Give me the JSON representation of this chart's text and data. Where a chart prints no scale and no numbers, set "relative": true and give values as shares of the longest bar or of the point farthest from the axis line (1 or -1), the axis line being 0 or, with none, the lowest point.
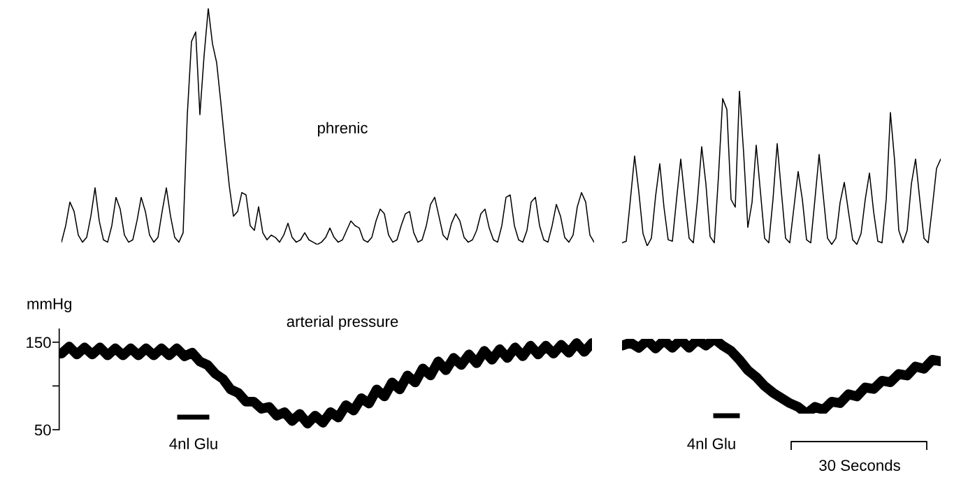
{
  "chart_data": [
    {
      "type": "line",
      "relative": true,
      "tick_labels": false,
      "annotations": [
        "phrenic"
      ],
      "categories": [
        null,
        null,
        null,
        null,
        null,
        null,
        null,
        null,
        null,
        null,
        null,
        null,
        null,
        null,
        null,
        null,
        null,
        null,
        null,
        null,
        null,
        null,
        null,
        null,
        null,
        null,
        null,
        null,
        null,
        null,
        null,
        null,
        null,
        null,
        null,
        null,
        null,
        null,
        null,
        null,
        null,
        null,
        null,
        null,
        null,
        null,
        null,
        null,
        null,
        null,
        null,
        null,
        null,
        null,
        null,
        null,
        null,
        null,
        null,
        null,
        null,
        null,
        null,
        null,
        null,
        null,
        null,
        null,
        null,
        null,
        null,
        null,
        null,
        null,
        null,
        null,
        null,
        null,
        null,
        null,
        null,
        null,
        null,
        null,
        null,
        null,
        null,
        null,
        null,
        null,
        null,
        null,
        null,
        null,
        null,
        null,
        null,
        null,
        null,
        null,
        null,
        null,
        null,
        null,
        null,
        null,
        null,
        null,
        null,
        null,
        null,
        null,
        null,
        null,
        null,
        null,
        null,
        null,
        null,
        null,
        null,
        null,
        null,
        null,
        null,
        null,
        null,
        null
      ],
      "series": [
        {
          "color": "#000000",
          "values": [
            0.01,
            0.08,
            0.18,
            0.14,
            0.04,
            0.01,
            0.03,
            0.12,
            0.24,
            0.1,
            0.02,
            0.01,
            0.08,
            0.2,
            0.15,
            0.04,
            0.01,
            0.02,
            0.1,
            0.2,
            0.14,
            0.04,
            0.01,
            0.03,
            0.14,
            0.24,
            0.12,
            0.03,
            0.01,
            0.05,
            0.55,
            0.86,
            0.9,
            0.55,
            0.8,
            1.0,
            0.85,
            0.77,
            0.6,
            0.42,
            0.25,
            0.12,
            0.14,
            0.22,
            0.21,
            0.08,
            0.06,
            0.16,
            0.05,
            0.02,
            0.04,
            0.03,
            0.01,
            0.04,
            0.09,
            0.03,
            0.01,
            0.02,
            0.05,
            0.02,
            0.01,
            0.0,
            0.01,
            0.03,
            0.07,
            0.03,
            0.01,
            0.02,
            0.06,
            0.1,
            0.08,
            0.07,
            0.02,
            0.01,
            0.03,
            0.1,
            0.15,
            0.13,
            0.04,
            0.01,
            0.02,
            0.08,
            0.13,
            0.14,
            0.05,
            0.01,
            0.02,
            0.08,
            0.17,
            0.2,
            0.12,
            0.04,
            0.02,
            0.09,
            0.13,
            0.1,
            0.03,
            0.01,
            0.02,
            0.06,
            0.13,
            0.15,
            0.07,
            0.02,
            0.01,
            0.08,
            0.2,
            0.21,
            0.08,
            0.02,
            0.01,
            0.06,
            0.18,
            0.2,
            0.08,
            0.02,
            0.01,
            0.08,
            0.17,
            0.12,
            0.03,
            0.01,
            0.04,
            0.16,
            0.22,
            0.18,
            0.04,
            0.01
          ]
        }
      ]
    },
    {
      "type": "line",
      "relative": true,
      "tick_labels": false,
      "categories": [
        null,
        null,
        null,
        null,
        null,
        null,
        null,
        null,
        null,
        null,
        null,
        null,
        null,
        null,
        null,
        null,
        null,
        null,
        null,
        null,
        null,
        null,
        null,
        null,
        null,
        null,
        null,
        null,
        null,
        null,
        null,
        null,
        null,
        null,
        null,
        null,
        null,
        null,
        null,
        null,
        null,
        null,
        null,
        null,
        null,
        null,
        null,
        null,
        null,
        null,
        null,
        null,
        null,
        null,
        null,
        null,
        null,
        null,
        null,
        null,
        null,
        null,
        null,
        null,
        null,
        null,
        null,
        null,
        null,
        null,
        null,
        null,
        null,
        null,
        null,
        null,
        null
      ],
      "series": [
        {
          "color": "#000000",
          "values": [
            0.02,
            0.03,
            0.3,
            0.58,
            0.35,
            0.08,
            0.0,
            0.05,
            0.32,
            0.53,
            0.25,
            0.04,
            0.03,
            0.3,
            0.56,
            0.3,
            0.05,
            0.02,
            0.3,
            0.64,
            0.4,
            0.06,
            0.02,
            0.45,
            0.95,
            0.88,
            0.3,
            0.25,
            1.0,
            0.6,
            0.12,
            0.28,
            0.65,
            0.35,
            0.05,
            0.02,
            0.3,
            0.66,
            0.35,
            0.05,
            0.02,
            0.25,
            0.48,
            0.3,
            0.04,
            0.02,
            0.3,
            0.59,
            0.32,
            0.05,
            0.01,
            0.05,
            0.28,
            0.41,
            0.22,
            0.04,
            0.01,
            0.08,
            0.3,
            0.47,
            0.22,
            0.03,
            0.02,
            0.3,
            0.86,
            0.55,
            0.1,
            0.02,
            0.1,
            0.4,
            0.56,
            0.3,
            0.05,
            0.02,
            0.25,
            0.5,
            0.56
          ]
        }
      ]
    },
    {
      "type": "line",
      "tick_labels": "y",
      "ylabel": "mmHg",
      "ylim": [
        50,
        165
      ],
      "yticks": [
        50,
        {
          "value": 100,
          "label": null
        },
        150
      ],
      "annotations": [
        "arterial pressure",
        "4nl Glu"
      ],
      "categories": [
        null,
        null,
        null,
        null,
        null,
        null,
        null,
        null,
        null,
        null,
        null,
        null,
        null,
        null,
        null,
        null,
        null,
        null,
        null,
        null,
        null,
        null,
        null,
        null,
        null,
        null,
        null,
        null,
        null,
        null,
        null,
        null,
        null,
        null,
        null,
        null,
        null,
        null,
        null,
        null,
        null,
        null,
        null,
        null,
        null,
        null,
        null,
        null,
        null,
        null,
        null,
        null,
        null,
        null,
        null,
        null,
        null,
        null,
        null,
        null,
        null,
        null,
        null,
        null,
        null,
        null,
        null,
        null,
        null,
        null
      ],
      "series": [
        {
          "color": "#000000",
          "values": [
            137,
            145,
            136,
            144,
            136,
            144,
            135,
            143,
            135,
            143,
            135,
            143,
            135,
            143,
            135,
            143,
            134,
            138,
            128,
            124,
            114,
            108,
            96,
            92,
            82,
            82,
            74,
            76,
            66,
            70,
            60,
            68,
            57,
            66,
            58,
            70,
            64,
            78,
            72,
            86,
            80,
            96,
            88,
            104,
            96,
            112,
            104,
            120,
            112,
            128,
            118,
            132,
            124,
            136,
            126,
            140,
            130,
            142,
            132,
            144,
            134,
            146,
            136,
            146,
            137,
            147,
            138,
            149,
            139,
            149
          ]
        }
      ]
    },
    {
      "type": "line",
      "relative": true,
      "tick_labels": false,
      "annotations": [
        "4nl Glu",
        "30 Seconds"
      ],
      "categories": [
        null,
        null,
        null,
        null,
        null,
        null,
        null,
        null,
        null,
        null,
        null,
        null,
        null,
        null,
        null,
        null,
        null,
        null,
        null,
        null,
        null,
        null,
        null,
        null,
        null,
        null,
        null,
        null,
        null,
        null,
        null,
        null,
        null,
        null,
        null,
        null,
        null,
        null,
        null
      ],
      "series": [
        {
          "color": "#000000",
          "values": [
            0.91,
            0.95,
            0.88,
            0.98,
            0.87,
            0.98,
            0.88,
            0.99,
            0.88,
            0.99,
            0.91,
            1.0,
            0.91,
            0.84,
            0.72,
            0.58,
            0.49,
            0.37,
            0.28,
            0.21,
            0.14,
            0.09,
            0.0,
            0.09,
            0.05,
            0.16,
            0.14,
            0.26,
            0.23,
            0.35,
            0.33,
            0.44,
            0.42,
            0.53,
            0.51,
            0.63,
            0.6,
            0.72,
            0.7
          ]
        }
      ]
    }
  ]
}
